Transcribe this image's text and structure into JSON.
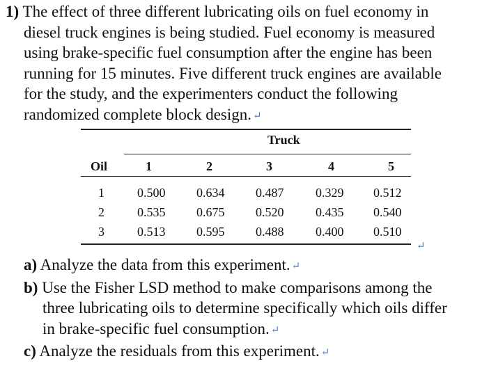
{
  "problem": {
    "number": "1)",
    "lines": [
      "The effect of three different lubricating oils on fuel economy in",
      "diesel truck engines is being studied. Fuel economy is measured",
      "using brake-specific fuel consumption after the engine has been",
      "running for 15 minutes. Five different truck engines are available",
      "for the study, and the experimenters conduct the following",
      "randomized complete block design."
    ],
    "return_mark": "↵"
  },
  "table": {
    "truck_label": "Truck",
    "oil_label": "Oil",
    "trucks": [
      "1",
      "2",
      "3",
      "4",
      "5"
    ],
    "rows": [
      {
        "oil": "1",
        "values": [
          "0.500",
          "0.634",
          "0.487",
          "0.329",
          "0.512"
        ]
      },
      {
        "oil": "2",
        "values": [
          "0.535",
          "0.675",
          "0.520",
          "0.435",
          "0.540"
        ]
      },
      {
        "oil": "3",
        "values": [
          "0.513",
          "0.595",
          "0.488",
          "0.400",
          "0.510"
        ]
      }
    ]
  },
  "questions": {
    "a": {
      "tag": "a)",
      "text": "Analyze the data from this experiment."
    },
    "b": {
      "tag": "b)",
      "lines": [
        "Use the Fisher LSD method to make comparisons among the",
        "three lubricating oils to determine specifically which oils differ",
        "in brake-specific fuel consumption."
      ]
    },
    "c": {
      "tag": "c)",
      "text": "Analyze the residuals from this experiment."
    }
  }
}
